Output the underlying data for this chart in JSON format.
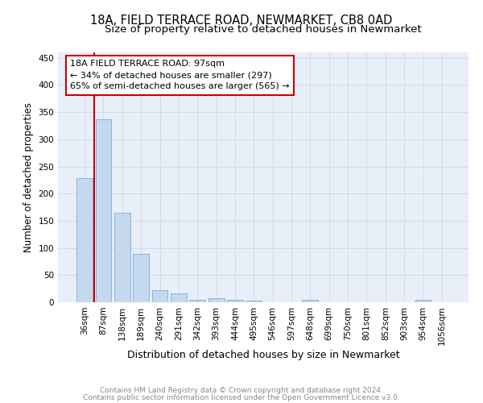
{
  "title1": "18A, FIELD TERRACE ROAD, NEWMARKET, CB8 0AD",
  "title2": "Size of property relative to detached houses in Newmarket",
  "xlabel": "Distribution of detached houses by size in Newmarket",
  "ylabel": "Number of detached properties",
  "bar_labels": [
    "36sqm",
    "87sqm",
    "138sqm",
    "189sqm",
    "240sqm",
    "291sqm",
    "342sqm",
    "393sqm",
    "444sqm",
    "495sqm",
    "546sqm",
    "597sqm",
    "648sqm",
    "699sqm",
    "750sqm",
    "801sqm",
    "852sqm",
    "903sqm",
    "954sqm",
    "1056sqm"
  ],
  "bar_values": [
    229,
    337,
    165,
    89,
    23,
    16,
    5,
    7,
    5,
    3,
    0,
    0,
    4,
    0,
    0,
    0,
    0,
    0,
    4,
    0
  ],
  "bar_color": "#c5d8f0",
  "bar_edge_color": "#7aadd4",
  "bar_width": 0.85,
  "ylim": [
    0,
    460
  ],
  "yticks": [
    0,
    50,
    100,
    150,
    200,
    250,
    300,
    350,
    400,
    450
  ],
  "red_line_x": 0.5,
  "red_line_color": "#cc0000",
  "annotation_text": "18A FIELD TERRACE ROAD: 97sqm\n← 34% of detached houses are smaller (297)\n65% of semi-detached houses are larger (565) →",
  "annotation_box_color": "#ffffff",
  "annotation_box_edge_color": "#cc0000",
  "grid_color": "#cdd8ea",
  "bg_color": "#e8eff8",
  "footer1": "Contains HM Land Registry data © Crown copyright and database right 2024.",
  "footer2": "Contains public sector information licensed under the Open Government Licence v3.0.",
  "title1_fontsize": 10.5,
  "title2_fontsize": 9.5,
  "xlabel_fontsize": 9,
  "ylabel_fontsize": 8.5,
  "tick_fontsize": 7.5,
  "annotation_fontsize": 8,
  "footer_fontsize": 6.5
}
